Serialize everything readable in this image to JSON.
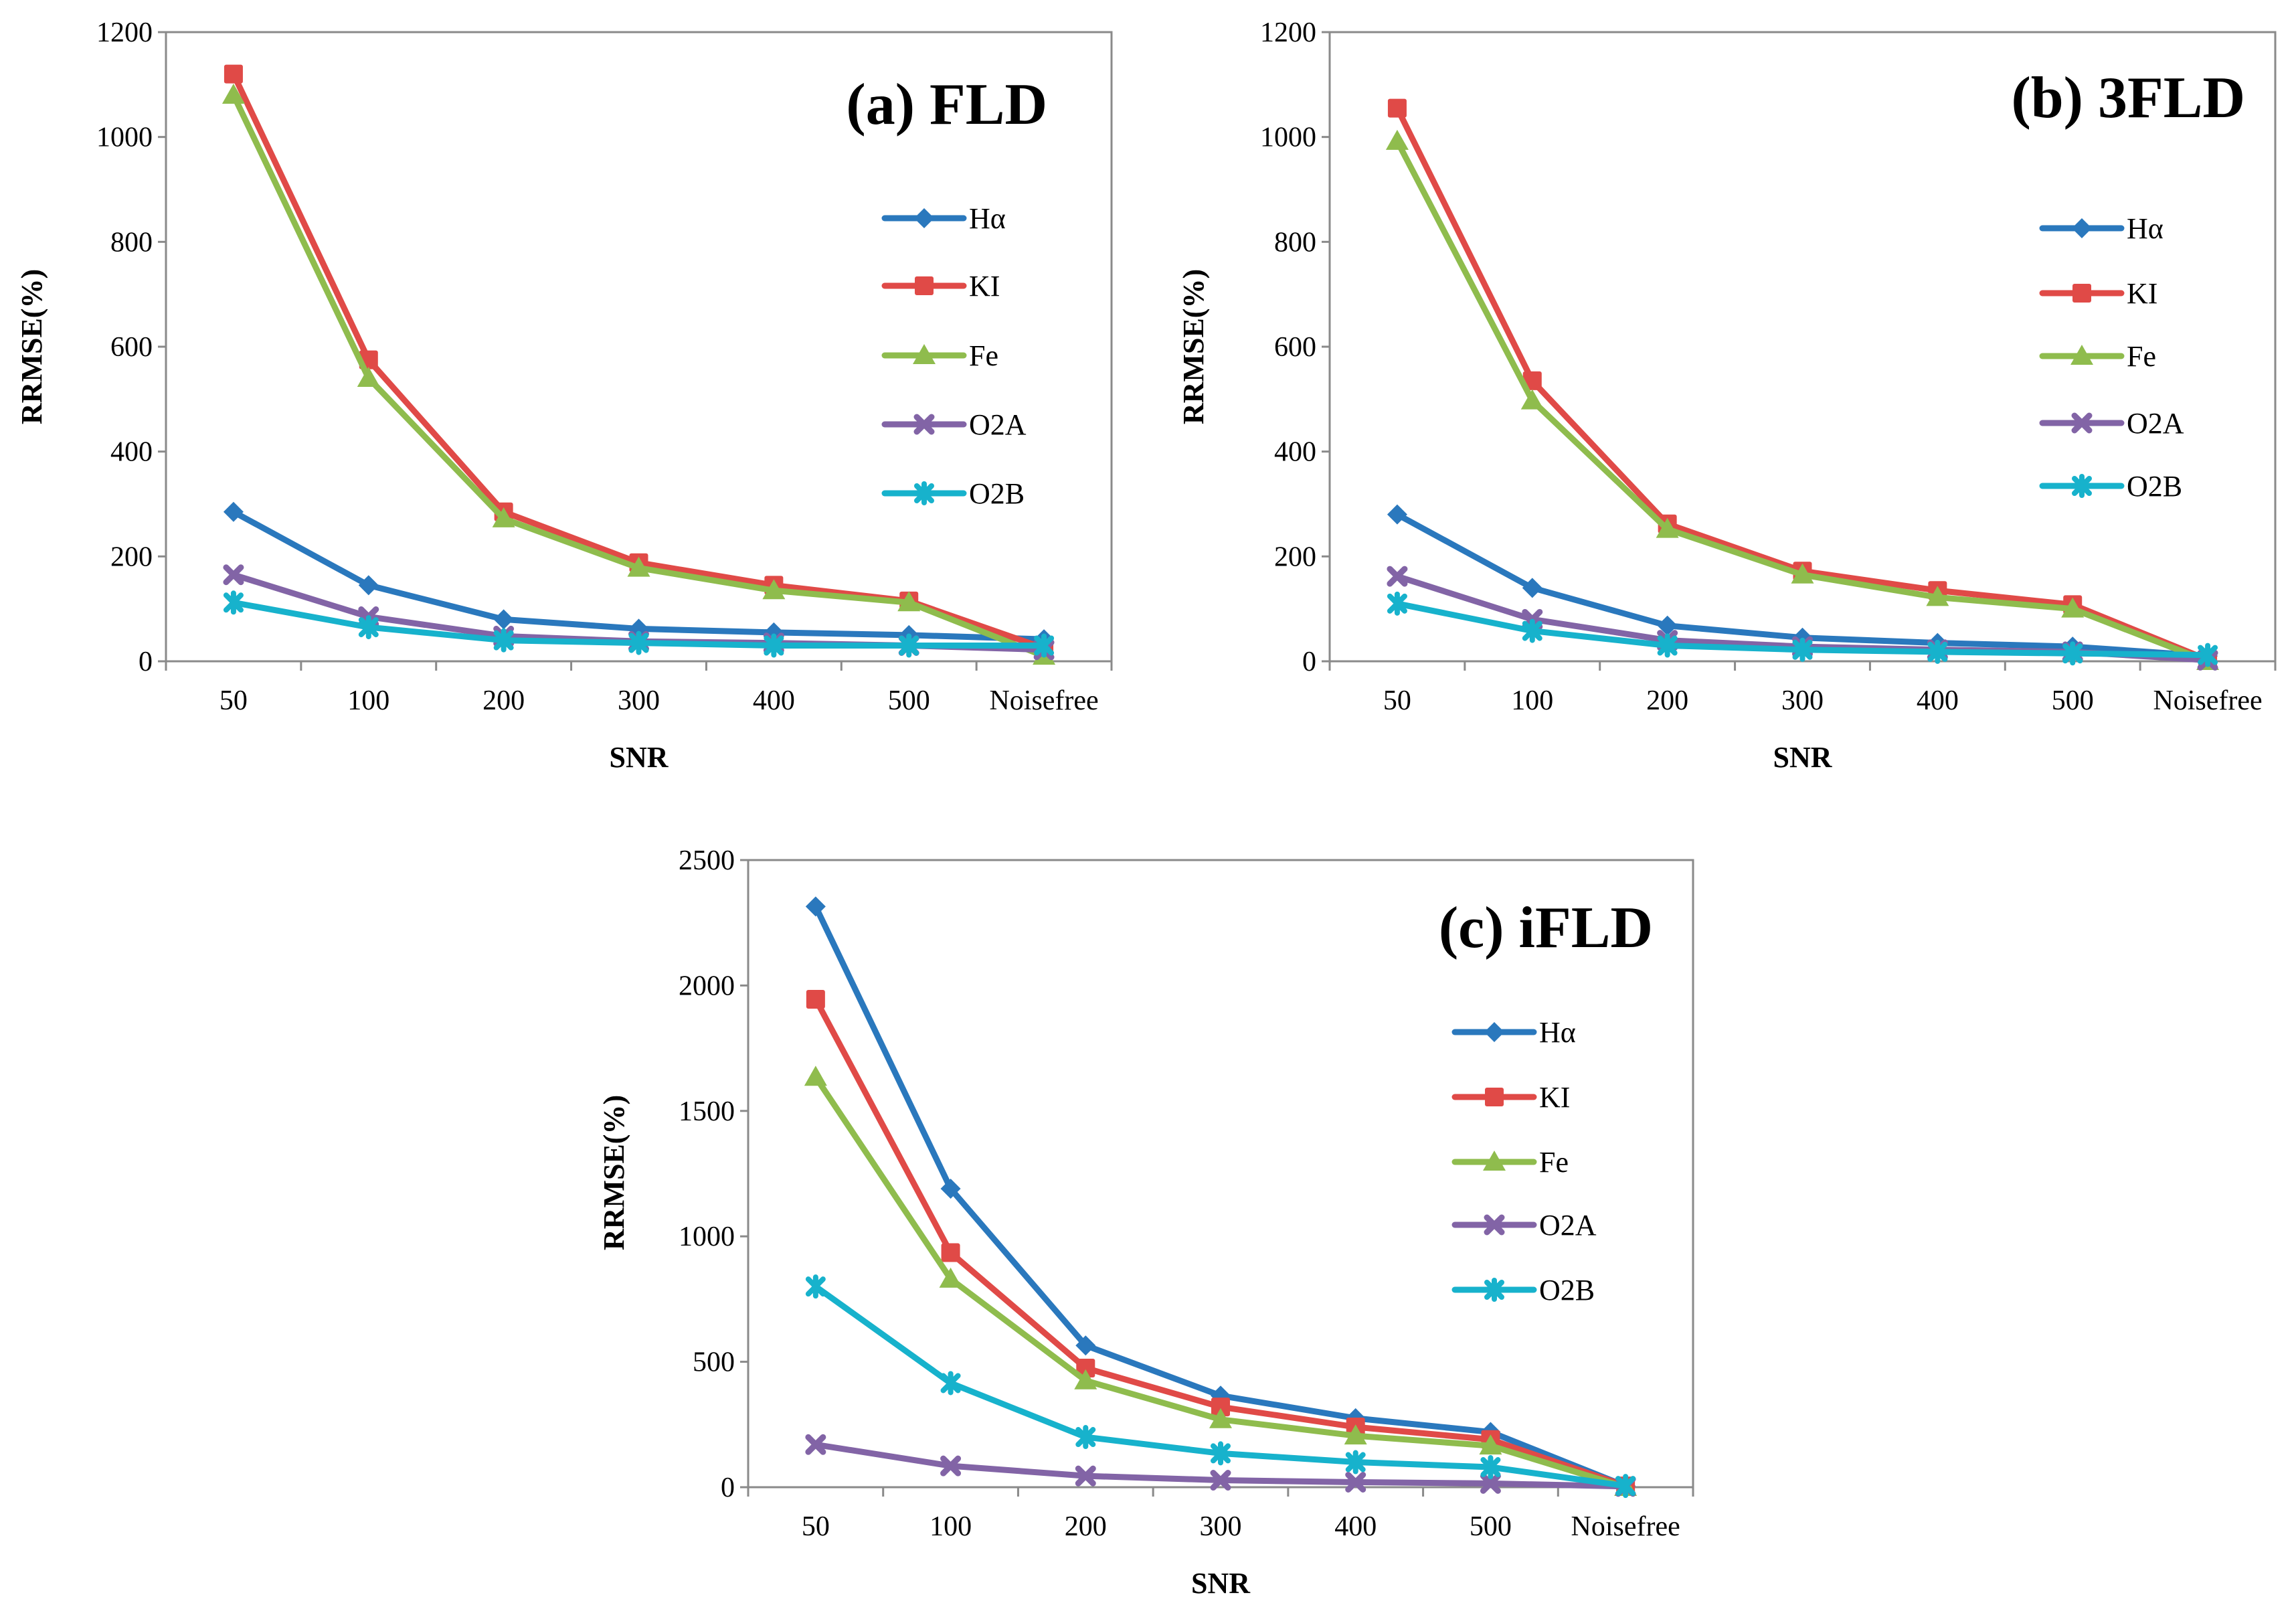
{
  "colors": {
    "Hα": "#2a78bd",
    "KI": "#e04a47",
    "Fe": "#8fbc4d",
    "O2A": "#8264a6",
    "O2B": "#17b2cc"
  },
  "markers": {
    "Hα": "diamond",
    "KI": "square",
    "Fe": "triangle",
    "O2A": "x",
    "O2B": "star"
  },
  "chart_data": [
    {
      "type": "line",
      "title": "(a) FLD",
      "xlabel": "SNR",
      "ylabel": "RRMSE(%)",
      "categories": [
        "50",
        "100",
        "200",
        "300",
        "400",
        "500",
        "Noisefree"
      ],
      "ylim": [
        0,
        1200
      ],
      "yticks": [
        "0",
        "200",
        "400",
        "600",
        "800",
        "1000",
        "1200"
      ],
      "ytick_values": [
        0,
        200,
        400,
        600,
        800,
        1000,
        1200
      ],
      "legend": "right",
      "series": [
        {
          "name": "Hα",
          "values": [
            285,
            145,
            80,
            62,
            55,
            50,
            42
          ]
        },
        {
          "name": "KI",
          "values": [
            1120,
            575,
            285,
            188,
            145,
            115,
            25
          ]
        },
        {
          "name": "Fe",
          "values": [
            1080,
            540,
            272,
            178,
            135,
            112,
            10
          ]
        },
        {
          "name": "O2A",
          "values": [
            165,
            85,
            48,
            38,
            35,
            30,
            22
          ]
        },
        {
          "name": "O2B",
          "values": [
            112,
            65,
            40,
            35,
            30,
            30,
            30
          ]
        }
      ]
    },
    {
      "type": "line",
      "title": "(b) 3FLD",
      "xlabel": "SNR",
      "ylabel": "RRMSE(%)",
      "categories": [
        "50",
        "100",
        "200",
        "300",
        "400",
        "500",
        "Noisefree"
      ],
      "ylim": [
        0,
        1200
      ],
      "yticks": [
        "0",
        "200",
        "400",
        "600",
        "800",
        "1000",
        "1200"
      ],
      "ytick_values": [
        0,
        200,
        400,
        600,
        800,
        1000,
        1200
      ],
      "legend": "right",
      "series": [
        {
          "name": "Hα",
          "values": [
            280,
            140,
            68,
            45,
            35,
            28,
            10
          ]
        },
        {
          "name": "KI",
          "values": [
            1055,
            535,
            262,
            172,
            135,
            108,
            3
          ]
        },
        {
          "name": "Fe",
          "values": [
            992,
            497,
            252,
            165,
            122,
            100,
            0
          ]
        },
        {
          "name": "O2A",
          "values": [
            162,
            80,
            40,
            28,
            22,
            18,
            2
          ]
        },
        {
          "name": "O2B",
          "values": [
            110,
            58,
            30,
            22,
            18,
            15,
            12
          ]
        }
      ]
    },
    {
      "type": "line",
      "title": "(c) iFLD",
      "xlabel": "SNR",
      "ylabel": "RRMSE(%)",
      "categories": [
        "50",
        "100",
        "200",
        "300",
        "400",
        "500",
        "Noisefree"
      ],
      "ylim": [
        0,
        2500
      ],
      "yticks": [
        "0",
        "500",
        "1000",
        "1500",
        "2000",
        "2500"
      ],
      "ytick_values": [
        0,
        500,
        1000,
        1500,
        2000,
        2500
      ],
      "legend": "right",
      "series": [
        {
          "name": "Hα",
          "values": [
            2315,
            1190,
            565,
            365,
            275,
            220,
            5
          ]
        },
        {
          "name": "KI",
          "values": [
            1945,
            935,
            475,
            320,
            240,
            190,
            5
          ]
        },
        {
          "name": "Fe",
          "values": [
            1635,
            830,
            425,
            270,
            205,
            165,
            0
          ]
        },
        {
          "name": "O2A",
          "values": [
            170,
            85,
            45,
            28,
            20,
            15,
            3
          ]
        },
        {
          "name": "O2B",
          "values": [
            800,
            415,
            200,
            135,
            100,
            80,
            5
          ]
        }
      ]
    }
  ]
}
